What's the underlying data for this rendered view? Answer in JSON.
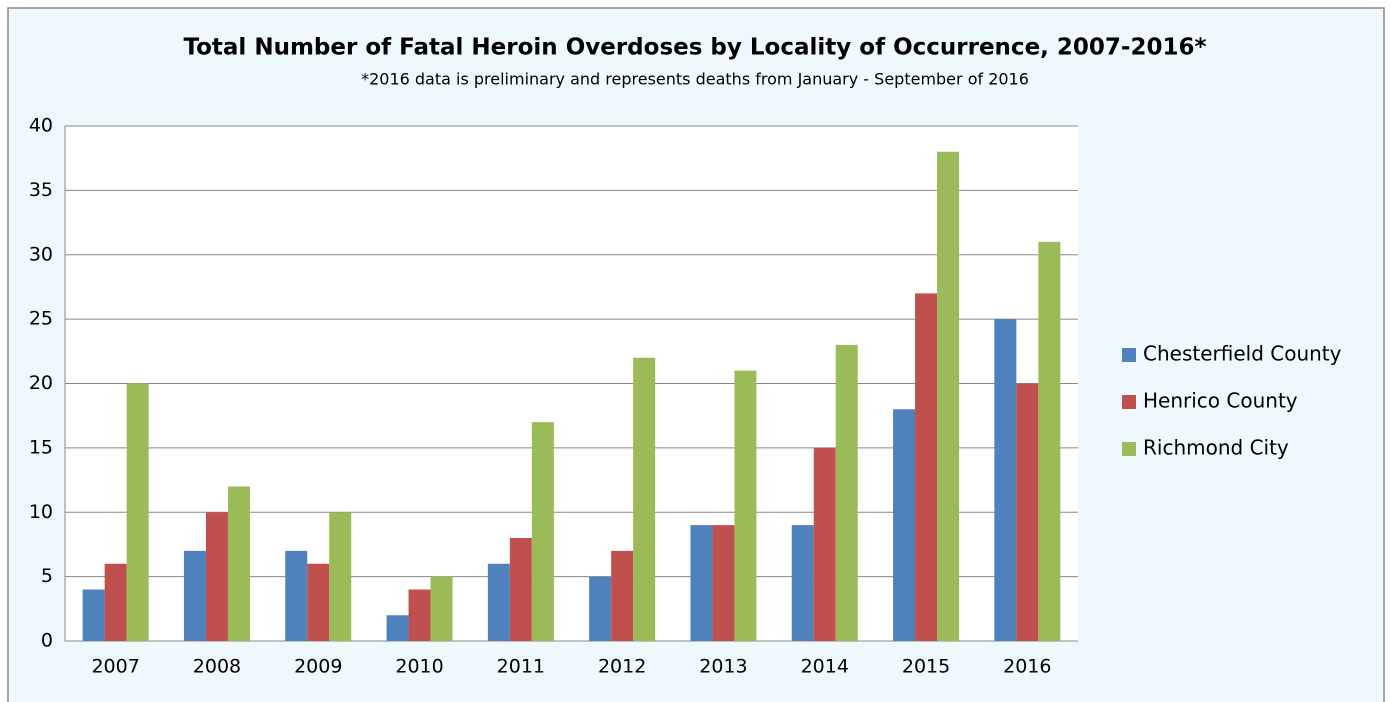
{
  "chart_data": {
    "type": "bar",
    "title": "Total Number of Fatal Heroin Overdoses by Locality of Occurrence, 2007-2016*",
    "subtitle": "*2016 data is preliminary and represents deaths from January - September of 2016",
    "categories": [
      "2007",
      "2008",
      "2009",
      "2010",
      "2011",
      "2012",
      "2013",
      "2014",
      "2015",
      "2016"
    ],
    "series": [
      {
        "name": "Chesterfield County",
        "color": "#4f81bd",
        "values": [
          4,
          7,
          7,
          2,
          6,
          5,
          9,
          9,
          18,
          25
        ]
      },
      {
        "name": "Henrico County",
        "color": "#c0504d",
        "values": [
          6,
          10,
          6,
          4,
          8,
          7,
          9,
          15,
          27,
          20
        ]
      },
      {
        "name": "Richmond City",
        "color": "#9bbb59",
        "values": [
          20,
          12,
          10,
          5,
          17,
          22,
          21,
          23,
          38,
          31
        ]
      }
    ],
    "ylim": [
      0,
      40
    ],
    "yticks": [
      0,
      5,
      10,
      15,
      20,
      25,
      30,
      35,
      40
    ],
    "grid": true,
    "legend": "right"
  }
}
